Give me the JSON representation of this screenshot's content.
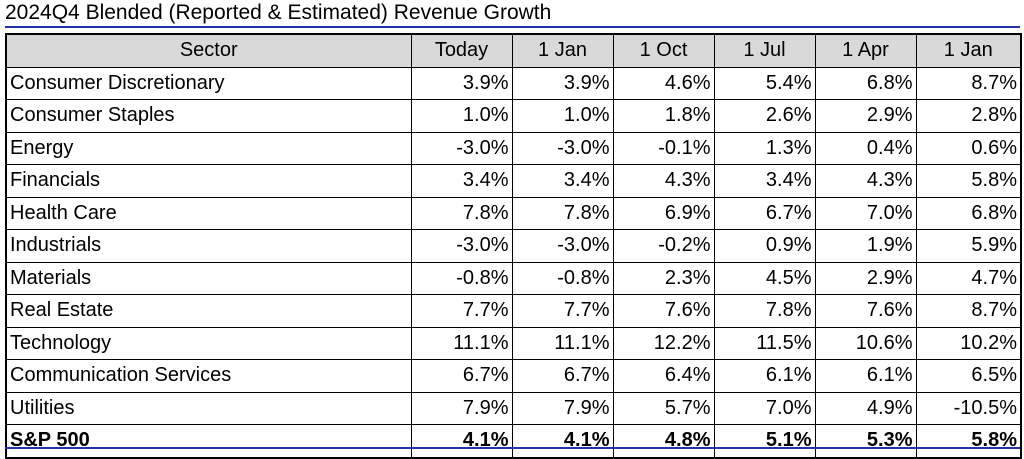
{
  "title": "2024Q4 Blended (Reported & Estimated) Revenue Growth",
  "colors": {
    "rule": "#2233aa",
    "header_bg": "#d9d9d9",
    "grid": "#000000"
  },
  "chart_data": {
    "type": "table",
    "title": "2024Q4 Blended (Reported & Estimated) Revenue Growth",
    "columns": [
      "Sector",
      "Today",
      "1 Jan",
      "1 Oct",
      "1 Jul",
      "1 Apr",
      "1 Jan"
    ],
    "rows": [
      {
        "label": "Consumer Discretionary",
        "values": [
          "3.9%",
          "3.9%",
          "4.6%",
          "5.4%",
          "6.8%",
          "8.7%"
        ]
      },
      {
        "label": "Consumer Staples",
        "values": [
          "1.0%",
          "1.0%",
          "1.8%",
          "2.6%",
          "2.9%",
          "2.8%"
        ]
      },
      {
        "label": "Energy",
        "values": [
          "-3.0%",
          "-3.0%",
          "-0.1%",
          "1.3%",
          "0.4%",
          "0.6%"
        ]
      },
      {
        "label": "Financials",
        "values": [
          "3.4%",
          "3.4%",
          "4.3%",
          "3.4%",
          "4.3%",
          "5.8%"
        ]
      },
      {
        "label": "Health Care",
        "values": [
          "7.8%",
          "7.8%",
          "6.9%",
          "6.7%",
          "7.0%",
          "6.8%"
        ]
      },
      {
        "label": "Industrials",
        "values": [
          "-3.0%",
          "-3.0%",
          "-0.2%",
          "0.9%",
          "1.9%",
          "5.9%"
        ]
      },
      {
        "label": "Materials",
        "values": [
          "-0.8%",
          "-0.8%",
          "2.3%",
          "4.5%",
          "2.9%",
          "4.7%"
        ]
      },
      {
        "label": "Real Estate",
        "values": [
          "7.7%",
          "7.7%",
          "7.6%",
          "7.8%",
          "7.6%",
          "8.7%"
        ]
      },
      {
        "label": "Technology",
        "values": [
          "11.1%",
          "11.1%",
          "12.2%",
          "11.5%",
          "10.6%",
          "10.2%"
        ]
      },
      {
        "label": "Communication Services",
        "values": [
          "6.7%",
          "6.7%",
          "6.4%",
          "6.1%",
          "6.1%",
          "6.5%"
        ]
      },
      {
        "label": "Utilities",
        "values": [
          "7.9%",
          "7.9%",
          "5.7%",
          "7.0%",
          "4.9%",
          "-10.5%"
        ]
      }
    ],
    "total": {
      "label": "S&P 500",
      "values": [
        "4.1%",
        "4.1%",
        "4.8%",
        "5.1%",
        "5.3%",
        "5.8%"
      ]
    }
  }
}
